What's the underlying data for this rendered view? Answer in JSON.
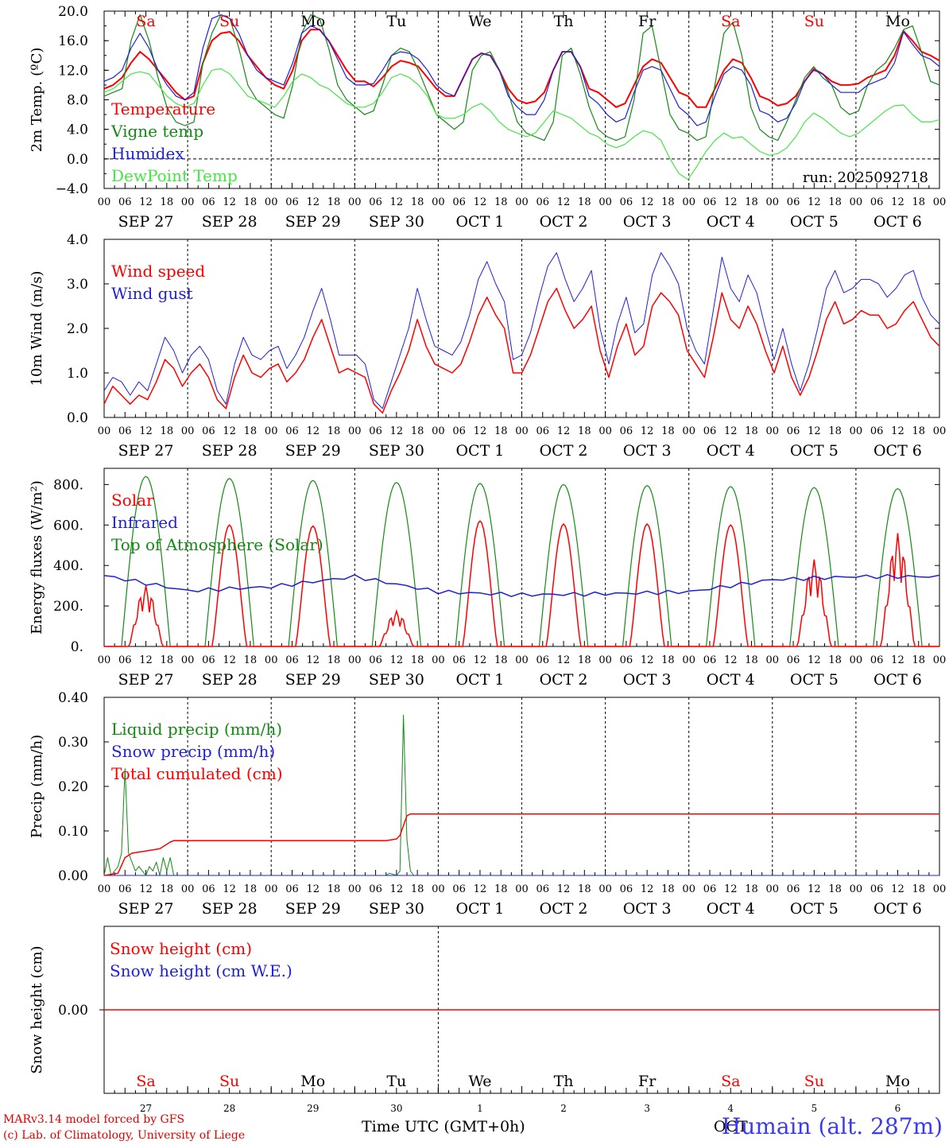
{
  "chart_data": [
    {
      "id": "temp",
      "type": "line",
      "ylabel": "2m Temp. (ºC)",
      "ylim": [
        -4.0,
        20.0
      ],
      "yticks": [
        "20.0",
        "16.0",
        "12.0",
        "8.0",
        "4.0",
        "0.0",
        "−4.0"
      ],
      "zero_line": true,
      "run_label": "run: 2025092718",
      "series": [
        {
          "name": "Temperature",
          "color": "#ff0000",
          "width": 2,
          "values": [
            9.5,
            10,
            11,
            13,
            14.5,
            13.5,
            12,
            10.5,
            9,
            8,
            8.5,
            13,
            16,
            17,
            17.2,
            16,
            14,
            12.5,
            11,
            10,
            9.5,
            12,
            16,
            17.5,
            17.5,
            16,
            14,
            12,
            10.5,
            10.5,
            9.8,
            11,
            12.5,
            13.3,
            13,
            12.5,
            11,
            9.5,
            8.5,
            8.5,
            11,
            13.5,
            14.3,
            14,
            12,
            9.5,
            8,
            7.5,
            7.8,
            9,
            12,
            14.5,
            14.5,
            12.5,
            9.5,
            9,
            8,
            7,
            7.5,
            10,
            12.5,
            13.5,
            13,
            11,
            9,
            8.5,
            7,
            7,
            9.5,
            12,
            13.5,
            13,
            11,
            8.5,
            8,
            7.2,
            7.5,
            8.5,
            10.5,
            12.2,
            11.5,
            10.5,
            10,
            10,
            10.2,
            11,
            11.5,
            12,
            14,
            17.3,
            16,
            14.5,
            14,
            13.3
          ]
        },
        {
          "name": "Vigne temp",
          "color": "#138a13",
          "width": 1.2,
          "values": [
            8.5,
            9,
            9.5,
            16,
            19.5,
            16,
            11,
            7,
            5,
            4.5,
            5,
            13,
            17,
            19.5,
            19,
            15,
            10,
            8,
            7,
            6,
            5.5,
            10,
            17,
            19.5,
            19,
            15,
            10,
            8,
            7,
            6,
            6.5,
            10,
            14,
            15,
            14.5,
            12,
            9,
            6,
            5,
            4,
            5,
            12,
            14,
            14.5,
            12,
            9,
            5,
            3.5,
            3,
            2.5,
            5,
            14,
            15,
            11.5,
            7,
            4,
            3,
            2.5,
            3,
            8,
            17,
            18,
            12,
            6,
            4,
            3.5,
            2.5,
            3,
            10,
            17,
            18.5,
            14,
            7,
            4,
            3,
            2.5,
            5,
            8,
            11,
            12.5,
            11,
            10,
            7,
            6,
            6.5,
            10,
            12,
            13,
            15,
            17.5,
            18,
            14.5,
            10.5,
            10
          ]
        },
        {
          "name": "Humidex",
          "color": "#1f1fd8",
          "width": 1.2,
          "values": [
            10.5,
            11,
            12,
            15,
            17,
            15,
            12,
            10,
            8.5,
            8,
            9,
            15,
            19,
            19.5,
            19,
            17,
            14,
            12,
            11,
            10.5,
            10,
            13,
            17,
            18,
            17.5,
            16,
            13.5,
            11,
            10,
            10,
            10.2,
            12,
            14,
            14.5,
            14.3,
            13.5,
            12,
            10,
            9,
            8.5,
            11,
            13.5,
            14.3,
            14,
            12,
            8.5,
            7,
            6,
            6,
            8,
            12,
            14.5,
            14.5,
            12.5,
            8.5,
            7.5,
            6,
            5,
            5.5,
            9,
            12,
            12.5,
            12,
            9.5,
            7,
            6,
            4.5,
            5,
            8.5,
            11.5,
            12.5,
            12,
            10,
            6.5,
            6,
            5,
            5.5,
            7.5,
            10.5,
            12,
            11.5,
            10,
            9,
            9,
            9,
            10,
            10.5,
            11,
            13,
            17.2,
            15.5,
            14,
            13.5,
            12.5
          ]
        },
        {
          "name": "DewPoint Temp",
          "color": "#44e844",
          "width": 1.2,
          "values": [
            9,
            9.5,
            10.5,
            11.5,
            11.8,
            11.5,
            10,
            8.5,
            7.5,
            7,
            7.5,
            10,
            12,
            12.2,
            11.5,
            10,
            8.5,
            8,
            7.5,
            7,
            8.5,
            10.5,
            11.5,
            11,
            10,
            9.5,
            8.5,
            7.5,
            7,
            7,
            7.5,
            9,
            11,
            11.5,
            11,
            10,
            8.5,
            6,
            5.5,
            5.5,
            6,
            7,
            7.5,
            6.5,
            5,
            4,
            3.5,
            3,
            3.5,
            5,
            6.5,
            6,
            5.5,
            4.5,
            3.5,
            3,
            2,
            1.5,
            2,
            3,
            3.8,
            3.5,
            2.5,
            0,
            -2,
            -2.8,
            -1,
            1,
            2.5,
            3.5,
            2.8,
            3,
            2,
            1,
            0.5,
            0.7,
            1.5,
            3,
            5,
            6.2,
            5.5,
            4.5,
            3.5,
            3,
            3.5,
            4.5,
            5.5,
            6.5,
            7.2,
            7.3,
            6,
            5,
            5,
            5.3
          ]
        }
      ]
    },
    {
      "id": "wind",
      "type": "line",
      "ylabel": "10m Wind (m/s)",
      "ylim": [
        0.0,
        4.0
      ],
      "yticks": [
        "4.0",
        "3.0",
        "2.0",
        "1.0",
        "0.0"
      ],
      "series": [
        {
          "name": "Wind speed",
          "color": "#ff0000",
          "width": 1.5,
          "values": [
            0.3,
            0.7,
            0.5,
            0.3,
            0.5,
            0.4,
            0.8,
            1.3,
            1.1,
            0.7,
            1.0,
            1.2,
            0.9,
            0.4,
            0.2,
            0.9,
            1.4,
            1.0,
            0.9,
            1.1,
            1.2,
            0.8,
            1.0,
            1.3,
            1.8,
            2.2,
            1.6,
            1.0,
            1.1,
            1.0,
            0.9,
            0.3,
            0.1,
            0.6,
            1.0,
            1.5,
            2.2,
            1.6,
            1.2,
            1.1,
            1.0,
            1.2,
            1.7,
            2.3,
            2.7,
            2.3,
            2.0,
            1.0,
            1.0,
            1.4,
            2.0,
            2.6,
            2.9,
            2.4,
            2.0,
            2.2,
            2.5,
            1.5,
            0.9,
            1.6,
            2.1,
            1.4,
            1.6,
            2.5,
            2.8,
            2.6,
            2.3,
            1.5,
            1.2,
            0.9,
            1.8,
            2.8,
            2.2,
            2.0,
            2.5,
            2.1,
            1.5,
            1.0,
            1.6,
            0.9,
            0.5,
            0.9,
            1.5,
            2.2,
            2.6,
            2.1,
            2.2,
            2.4,
            2.3,
            2.3,
            2.0,
            2.1,
            2.4,
            2.6,
            2.2,
            1.8,
            1.6
          ]
        },
        {
          "name": "Wind gust",
          "color": "#1f1fd8",
          "width": 1,
          "values": [
            0.6,
            0.9,
            0.8,
            0.5,
            0.8,
            0.6,
            1.2,
            1.8,
            1.5,
            1.0,
            1.4,
            1.6,
            1.3,
            0.6,
            0.3,
            1.2,
            1.8,
            1.4,
            1.3,
            1.5,
            1.6,
            1.1,
            1.4,
            1.8,
            2.4,
            2.9,
            2.2,
            1.4,
            1.4,
            1.4,
            1.2,
            0.4,
            0.2,
            0.8,
            1.4,
            2.0,
            2.9,
            2.2,
            1.6,
            1.5,
            1.4,
            1.7,
            2.3,
            3.1,
            3.5,
            3.0,
            2.6,
            1.3,
            1.4,
            1.9,
            2.7,
            3.4,
            3.7,
            3.1,
            2.6,
            2.9,
            3.3,
            2.0,
            1.2,
            2.1,
            2.7,
            1.9,
            2.1,
            3.2,
            3.7,
            3.4,
            3.0,
            2.0,
            1.5,
            1.2,
            2.4,
            3.6,
            2.9,
            2.6,
            3.2,
            2.8,
            2.0,
            1.3,
            2.0,
            1.2,
            0.6,
            1.2,
            2.0,
            2.9,
            3.3,
            2.8,
            2.9,
            3.1,
            3.1,
            3.0,
            2.7,
            2.9,
            3.2,
            3.3,
            2.7,
            2.3,
            2.1
          ]
        }
      ]
    },
    {
      "id": "energy",
      "type": "line",
      "ylabel": "Energy fluxes (W/m²)",
      "ylim": [
        0,
        880
      ],
      "yticks": [
        "800.",
        "600.",
        "400.",
        "200.",
        "0."
      ],
      "ytick_values": [
        800,
        600,
        400,
        200,
        0
      ],
      "top_of_atmosphere_peaks": [
        840,
        830,
        820,
        810,
        805,
        800,
        795,
        790,
        785,
        780
      ],
      "solar_peaks": [
        300,
        600,
        595,
        175,
        620,
        605,
        605,
        600,
        430,
        560
      ],
      "infrared_daily": [
        350,
        275,
        295,
        345,
        270,
        255,
        260,
        270,
        330,
        345
      ],
      "series": [
        {
          "name": "Solar",
          "color": "#ff0000",
          "width": 1.5
        },
        {
          "name": "Infrared",
          "color": "#1f1fd8",
          "width": 1.5
        },
        {
          "name": "Top of Atmosphere (Solar)",
          "color": "#138a13",
          "width": 1.2
        }
      ]
    },
    {
      "id": "precip",
      "type": "line",
      "ylabel": "Precip (mm/h)",
      "ylim": [
        0.0,
        0.4
      ],
      "yticks": [
        "0.40",
        "0.30",
        "0.20",
        "0.10",
        "0.00"
      ],
      "ytick_values": [
        0.4,
        0.3,
        0.2,
        0.1,
        0.0
      ],
      "series": [
        {
          "name": "Liquid precip (mm/h)",
          "color": "#138a13",
          "width": 1,
          "points": [
            [
              0,
              0
            ],
            [
              1,
              0.04
            ],
            [
              2,
              0
            ],
            [
              4,
              0.02
            ],
            [
              5,
              0.05
            ],
            [
              6,
              0.24
            ],
            [
              7,
              0.05
            ],
            [
              9,
              0.01
            ],
            [
              10,
              0.02
            ],
            [
              11,
              0.01
            ],
            [
              12,
              0
            ],
            [
              13,
              0.02
            ],
            [
              14,
              0.01
            ],
            [
              15,
              0.03
            ],
            [
              16,
              0
            ],
            [
              17,
              0.04
            ],
            [
              18,
              0.01
            ],
            [
              19,
              0.04
            ],
            [
              20,
              0
            ],
            [
              81,
              0
            ],
            [
              82,
              0.005
            ],
            [
              84,
              0
            ],
            [
              85,
              0.01
            ],
            [
              86,
              0.36
            ],
            [
              87,
              0.08
            ],
            [
              88,
              0.01
            ],
            [
              89,
              0
            ],
            [
              240,
              0
            ]
          ]
        },
        {
          "name": "Snow precip (mm/h)",
          "color": "#1f1fd8",
          "width": 1,
          "points": [
            [
              0,
              0
            ],
            [
              240,
              0
            ]
          ]
        },
        {
          "name": "Total cumulated (cm)",
          "color": "#ff0000",
          "width": 1.5,
          "points": [
            [
              0,
              0
            ],
            [
              4,
              0.005
            ],
            [
              6,
              0.04
            ],
            [
              8,
              0.05
            ],
            [
              12,
              0.055
            ],
            [
              16,
              0.06
            ],
            [
              19,
              0.075
            ],
            [
              20,
              0.078
            ],
            [
              81,
              0.078
            ],
            [
              84,
              0.082
            ],
            [
              85,
              0.09
            ],
            [
              87,
              0.134
            ],
            [
              88,
              0.138
            ],
            [
              240,
              0.138
            ]
          ]
        }
      ]
    },
    {
      "id": "snow",
      "type": "line",
      "ylabel": "Snow height (cm)",
      "yticks": [
        "0.00"
      ],
      "series": [
        {
          "name": "Snow height (cm)",
          "color": "#ff0000",
          "width": 1.5,
          "values": [
            0,
            0
          ]
        },
        {
          "name": "Snow height (cm W.E.)",
          "color": "#1f1fd8",
          "width": 1
        }
      ]
    }
  ],
  "x_axis": {
    "hour_labels": [
      "00",
      "06",
      "12",
      "18"
    ],
    "final_label": "00",
    "dates": [
      "SEP 27",
      "SEP 28",
      "SEP 29",
      "SEP 30",
      "OCT  1",
      "OCT  2",
      "OCT  3",
      "OCT  4",
      "OCT  5",
      "OCT  6"
    ],
    "weekdays": [
      "Sa",
      "Su",
      "Mo",
      "Tu",
      "We",
      "Th",
      "Fr",
      "Sa",
      "Su",
      "Mo"
    ],
    "weekday_colors": [
      "#ff0000",
      "#ff0000",
      "#000000",
      "#000000",
      "#000000",
      "#000000",
      "#000000",
      "#ff0000",
      "#ff0000",
      "#000000"
    ],
    "day_numbers": [
      "27",
      "28",
      "29",
      "30",
      "1",
      "2",
      "3",
      "4",
      "5",
      "6"
    ],
    "month_label": "OCT",
    "title": "Time UTC (GMT+0h)"
  },
  "footer": {
    "credit_line1": "MARv3.14 model forced by GFS",
    "credit_line2": "(c) Lab. of Climatology, University of Liege",
    "station": "Humain (alt. 287m)"
  }
}
